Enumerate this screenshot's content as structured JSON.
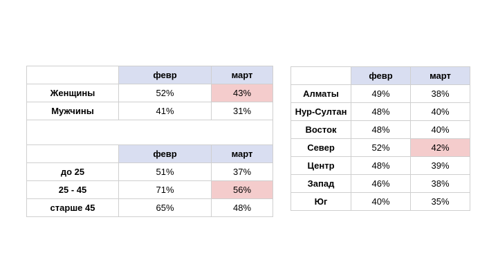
{
  "left_table": {
    "header": [
      "",
      "февр",
      "март"
    ],
    "gender_rows": [
      {
        "label": "Женщины",
        "feb": "52%",
        "mar": "43%"
      },
      {
        "label": "Мужчины",
        "feb": "41%",
        "mar": "31%"
      }
    ],
    "age_header": [
      "",
      "февр",
      "март"
    ],
    "age_rows": [
      {
        "label": "до 25",
        "feb": "51%",
        "mar": "37%"
      },
      {
        "label": "25 - 45",
        "feb": "71%",
        "mar": "56%"
      },
      {
        "label": "старше 45",
        "feb": "65%",
        "mar": "48%"
      }
    ],
    "highlight_color": "#f4cccc",
    "header_color": "#d9def1"
  },
  "right_table": {
    "header": [
      "",
      "февр",
      "март"
    ],
    "rows": [
      {
        "label": "Алматы",
        "feb": "49%",
        "mar": "38%"
      },
      {
        "label": "Нур-Султан",
        "feb": "48%",
        "mar": "40%"
      },
      {
        "label": "Восток",
        "feb": "48%",
        "mar": "40%"
      },
      {
        "label": "Север",
        "feb": "52%",
        "mar": "42%"
      },
      {
        "label": "Центр",
        "feb": "48%",
        "mar": "39%"
      },
      {
        "label": "Запад",
        "feb": "46%",
        "mar": "38%"
      },
      {
        "label": "Юг",
        "feb": "40%",
        "mar": "35%"
      }
    ],
    "highlight_color": "#f4cccc",
    "header_color": "#d9def1"
  }
}
